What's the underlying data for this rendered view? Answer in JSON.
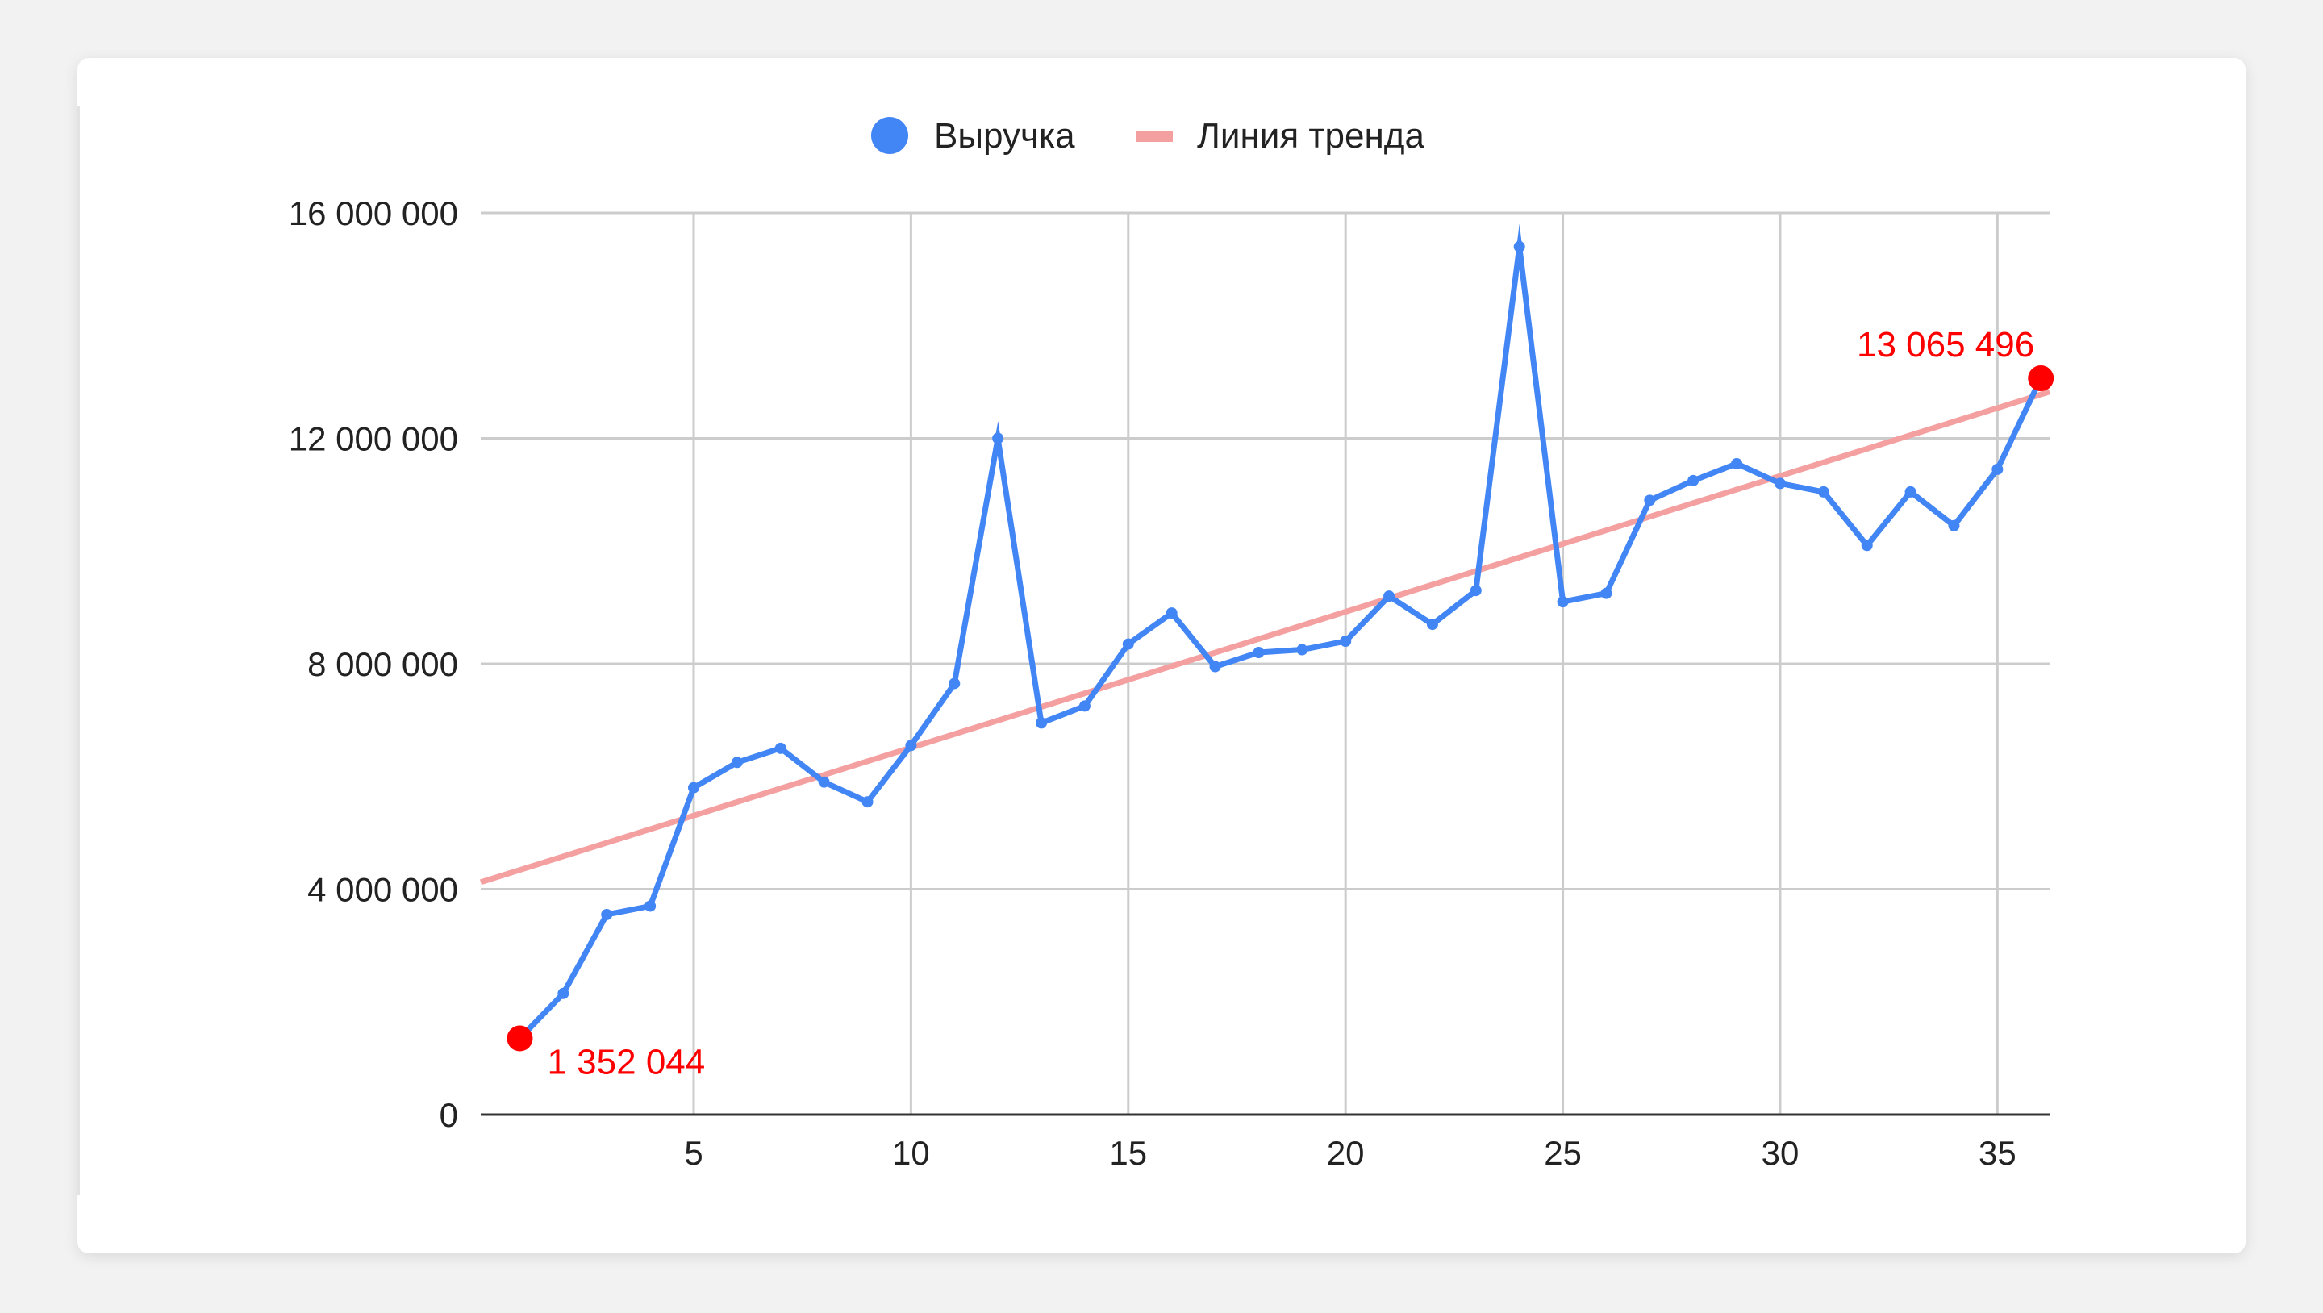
{
  "chart_data": {
    "type": "line",
    "title": "",
    "xlabel": "",
    "ylabel": "",
    "xlim": [
      0.1,
      36.2
    ],
    "ylim": [
      0,
      16000000
    ],
    "x_ticks": [
      5,
      10,
      15,
      20,
      25,
      30,
      35
    ],
    "x_tick_labels": [
      "5",
      "10",
      "15",
      "20",
      "25",
      "30",
      "35"
    ],
    "y_ticks": [
      0,
      4000000,
      8000000,
      12000000,
      16000000
    ],
    "y_tick_labels": [
      "0",
      "4 000 000",
      "8 000 000",
      "12 000 000",
      "16 000 000"
    ],
    "grid": true,
    "legend_position": "top-center",
    "legend": [
      {
        "label": "Выручка",
        "marker": "circle",
        "color": "#4285f4"
      },
      {
        "label": "Линия тренда",
        "marker": "line",
        "color": "#f4a0a0"
      }
    ],
    "series": [
      {
        "name": "Выручка",
        "color": "#4285f4",
        "x": [
          1,
          2,
          3,
          4,
          5,
          6,
          7,
          8,
          9,
          10,
          11,
          12,
          13,
          14,
          15,
          16,
          17,
          18,
          19,
          20,
          21,
          22,
          23,
          24,
          25,
          26,
          27,
          28,
          29,
          30,
          31,
          32,
          33,
          34,
          35,
          36
        ],
        "values": [
          1352044,
          2150000,
          3550000,
          3700000,
          5800000,
          6250000,
          6500000,
          5900000,
          5550000,
          6550000,
          7650000,
          12000000,
          6950000,
          7250000,
          8350000,
          8900000,
          7950000,
          8200000,
          8250000,
          8400000,
          9200000,
          8700000,
          9300000,
          15400000,
          9100000,
          9250000,
          10900000,
          11250000,
          11550000,
          11200000,
          11050000,
          10100000,
          11050000,
          10450000,
          11450000,
          13065496
        ]
      },
      {
        "name": "Линия тренда",
        "color": "#f4a0a0",
        "trend": {
          "x": [
            0,
            36.5
          ],
          "values": [
            4100000,
            12900000
          ]
        }
      }
    ],
    "annotations": [
      {
        "x": 1,
        "value": 1352044,
        "label": "1 352 044",
        "color": "#ff0000"
      },
      {
        "x": 36,
        "value": 13065496,
        "label": "13 065 496",
        "color": "#ff0000"
      }
    ]
  }
}
